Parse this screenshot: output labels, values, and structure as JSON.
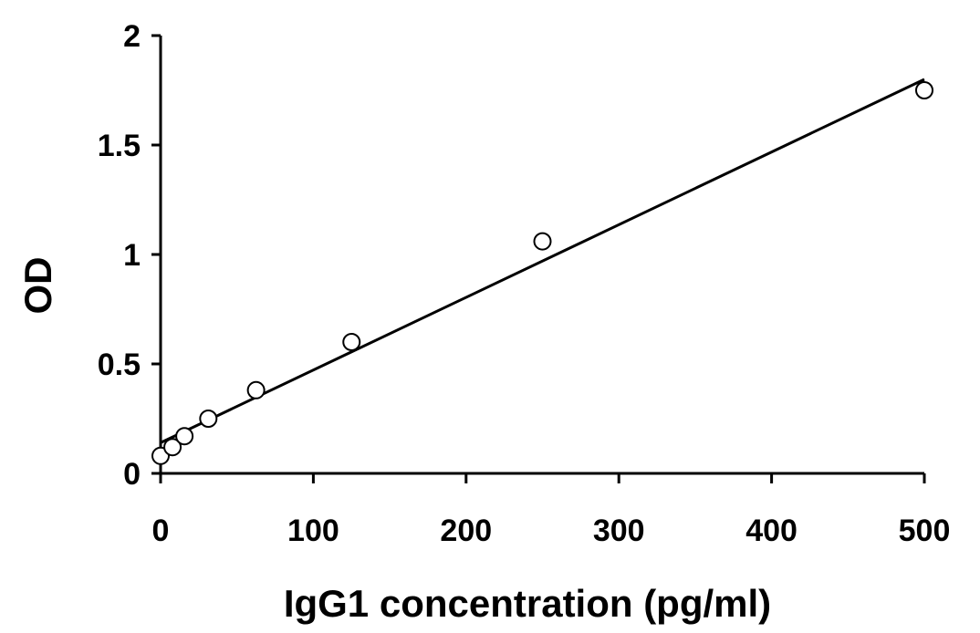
{
  "chart_data": {
    "type": "scatter",
    "title": "",
    "xlabel": "IgG1 concentration (pg/ml)",
    "ylabel": "OD",
    "xlim": [
      0,
      500
    ],
    "ylim": [
      0,
      2
    ],
    "x_ticks": [
      0,
      100,
      200,
      300,
      400,
      500
    ],
    "y_ticks": [
      0,
      0.5,
      1,
      1.5,
      2
    ],
    "x_tick_labels": [
      "0",
      "100",
      "200",
      "300",
      "400",
      "500"
    ],
    "y_tick_labels": [
      "0",
      "0.5",
      "1",
      "1.5",
      "2"
    ],
    "grid": false,
    "legend": "none",
    "series": [
      {
        "marker": "open-circle",
        "x": [
          0,
          7.8,
          15.6,
          31.25,
          62.5,
          125,
          250,
          500
        ],
        "y": [
          0.08,
          0.12,
          0.17,
          0.25,
          0.38,
          0.6,
          1.06,
          1.75
        ]
      }
    ],
    "trendline": {
      "kind": "linear",
      "x": [
        0,
        500
      ],
      "y": [
        0.14,
        1.8
      ]
    },
    "colors": {
      "axis": "#000000",
      "marker_edge": "#000000",
      "marker_fill": "#ffffff",
      "trendline": "#000000"
    }
  }
}
